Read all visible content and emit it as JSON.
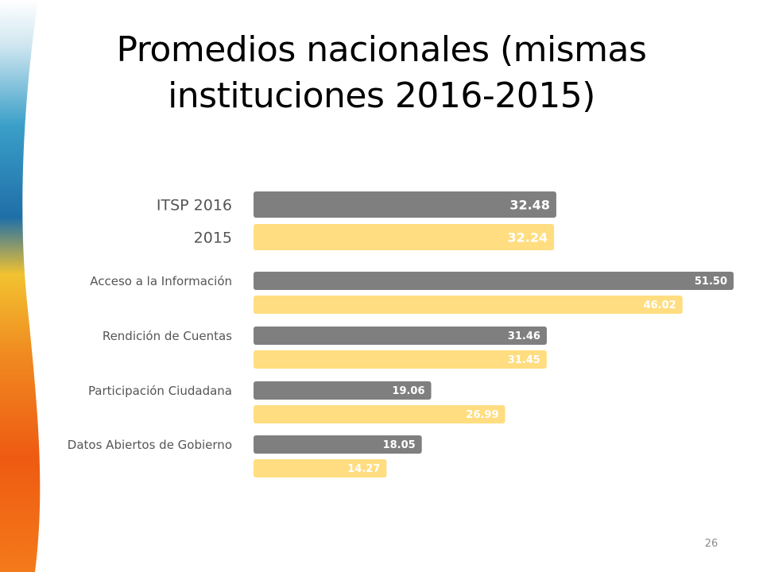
{
  "title": {
    "line1": "Promedios nacionales (mismas",
    "line2": "instituciones 2016-2015)"
  },
  "page_number": "26",
  "colors": {
    "series_2016": "#7f7f7f",
    "series_2015": "#ffdd80"
  },
  "chart_data": {
    "type": "bar",
    "orientation": "horizontal",
    "categories": [
      "ITSP 2016",
      "Acceso a la Información",
      "Rendición de Cuentas",
      "Participación Ciudadana",
      "Datos Abiertos de Gobierno"
    ],
    "first_category_labels": [
      "ITSP 2016",
      "2015"
    ],
    "series": [
      {
        "values": [
          32.48,
          51.5,
          31.46,
          19.06,
          18.05
        ],
        "labels": [
          "32.48",
          "51.50",
          "31.46",
          "19.06",
          "18.05"
        ]
      },
      {
        "values": [
          32.24,
          46.02,
          31.45,
          26.99,
          14.27
        ],
        "labels": [
          "32.24",
          "46.02",
          "31.45",
          "26.99",
          "14.27"
        ]
      }
    ],
    "xlim": [
      0,
      52
    ],
    "grid": false,
    "legend": "none"
  }
}
